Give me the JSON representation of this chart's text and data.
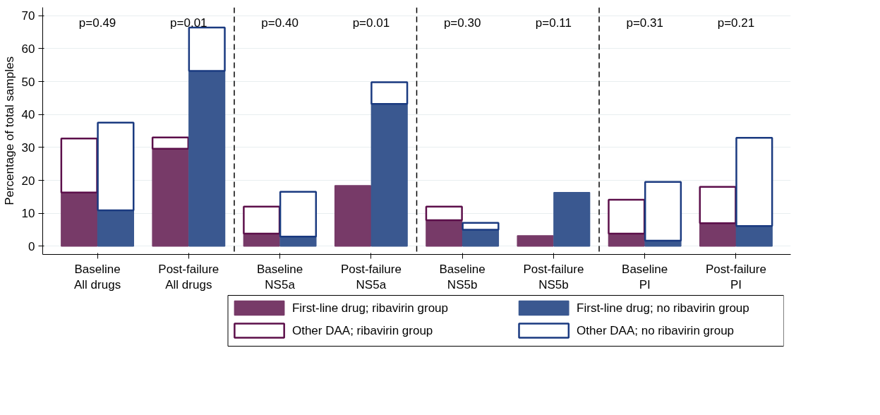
{
  "chart_data": {
    "type": "bar",
    "ylabel": "Percentage of total samples",
    "categories": [
      "Baseline\nAll drugs",
      "Post-failure\nAll drugs",
      "Baseline\nNS5a",
      "Post-failure\nNS5a",
      "Baseline\nNS5b",
      "Post-failure\nNS5b",
      "Baseline\nPI",
      "Post-failure\nPI"
    ],
    "series": [
      {
        "name": "First-line drug; ribavirin group",
        "color": "#773a68",
        "base": [
          0,
          0,
          0,
          0,
          0,
          0,
          0,
          0
        ],
        "values": [
          16.3,
          29.6,
          3.8,
          18.4,
          7.9,
          3.2,
          3.8,
          7.0
        ]
      },
      {
        "name": "Other DAA; ribavirin group",
        "color": "#5c0f4a",
        "base": [
          16.3,
          29.6,
          3.8,
          null,
          7.9,
          null,
          3.8,
          7.0
        ],
        "values": [
          16.4,
          3.4,
          8.2,
          null,
          4.1,
          null,
          10.3,
          11.0
        ]
      },
      {
        "name": "First-line drug; no ribavirin group",
        "color": "#3a5890",
        "base": [
          0,
          0,
          0,
          0,
          0,
          0,
          0,
          0
        ],
        "values": [
          10.9,
          53.2,
          2.9,
          43.2,
          5.0,
          16.3,
          1.7,
          6.1
        ]
      },
      {
        "name": "Other DAA; no ribavirin group",
        "color": "#1a3a80",
        "base": [
          10.9,
          53.2,
          2.9,
          43.2,
          5.0,
          null,
          1.7,
          6.1
        ],
        "values": [
          26.6,
          13.2,
          13.6,
          6.6,
          2.1,
          null,
          17.8,
          26.8
        ]
      }
    ],
    "ylim": [
      -2.5,
      72.5
    ],
    "yticks": [
      0,
      10,
      20,
      30,
      40,
      50,
      60,
      70
    ],
    "grid": "y",
    "legend": "bottom",
    "annotations": [
      "p=0.49",
      "p=0.01",
      "p=0.40",
      "p=0.01",
      "p=0.30",
      "p=0.11",
      "p=0.31",
      "p=0.21"
    ]
  }
}
